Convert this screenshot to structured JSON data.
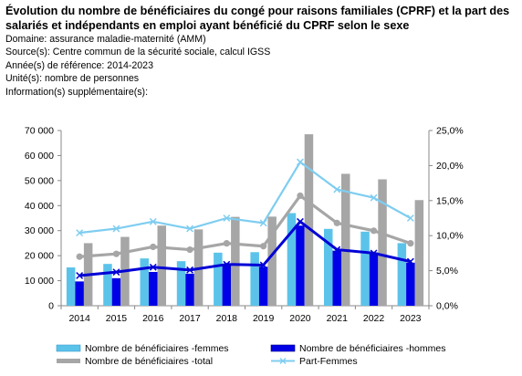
{
  "header": {
    "title": "Évolution du nombre de bénéficiaires du congé pour raisons familiales (CPRF) et la part des salariés et indépendants en emploi ayant bénéficié du CPRF selon le sexe",
    "domaine": "Domaine: assurance maladie-maternité (AMM)",
    "source": "Source(s): Centre commun de la sécurité sociale, calcul IGSS",
    "annee": "Année(s) de référence: 2014-2023",
    "unite": "Unité(s): nombre de personnes",
    "info": "Information(s) supplémentaire(s):"
  },
  "chart_data": {
    "type": "bar",
    "categories": [
      "2014",
      "2015",
      "2016",
      "2017",
      "2018",
      "2019",
      "2020",
      "2021",
      "2022",
      "2023"
    ],
    "y_left": {
      "min": 0,
      "max": 70000,
      "ticks": [
        "0",
        "10 000",
        "20 000",
        "30 000",
        "40 000",
        "50 000",
        "60 000",
        "70 000"
      ]
    },
    "y_right": {
      "min": 0,
      "max": 0.25,
      "ticks": [
        "0,0%",
        "5,0%",
        "10,0%",
        "15,0%",
        "20,0%",
        "25,0%"
      ]
    },
    "grid": false,
    "legend_position": "bottom",
    "series": [
      {
        "name": "Nombre de bénéficiaires -femmes",
        "kind": "bar",
        "axis": "left",
        "color": "#5bc3ea",
        "values": [
          15300,
          16700,
          18900,
          17800,
          21200,
          21400,
          37000,
          30700,
          29600,
          25000
        ]
      },
      {
        "name": "Nombre de bénéficiaires -hommes",
        "kind": "bar",
        "axis": "left",
        "color": "#0000e6",
        "values": [
          9700,
          11000,
          13500,
          12800,
          16500,
          15600,
          32000,
          22000,
          21300,
          17200
        ]
      },
      {
        "name": "Nombre de bénéficiaires -total",
        "kind": "bar",
        "axis": "left",
        "color": "#a6a6a6",
        "values": [
          25000,
          27500,
          32000,
          30500,
          35500,
          35600,
          68500,
          52700,
          50500,
          42200
        ]
      },
      {
        "name": "Part-Femmes",
        "kind": "line",
        "axis": "right",
        "color": "#7fcdf0",
        "marker": "x",
        "values": [
          0.104,
          0.11,
          0.12,
          0.11,
          0.125,
          0.118,
          0.205,
          0.166,
          0.154,
          0.125
        ]
      },
      {
        "name": "",
        "kind": "line",
        "axis": "right",
        "color": "#0000d6",
        "marker": "x",
        "values": [
          0.043,
          0.048,
          0.055,
          0.051,
          0.059,
          0.058,
          0.12,
          0.08,
          0.075,
          0.063
        ]
      },
      {
        "name": "",
        "kind": "line",
        "axis": "right",
        "color": "#a6a6a6",
        "marker": "circle",
        "values": [
          0.07,
          0.074,
          0.084,
          0.08,
          0.089,
          0.085,
          0.157,
          0.118,
          0.107,
          0.089
        ]
      }
    ]
  }
}
